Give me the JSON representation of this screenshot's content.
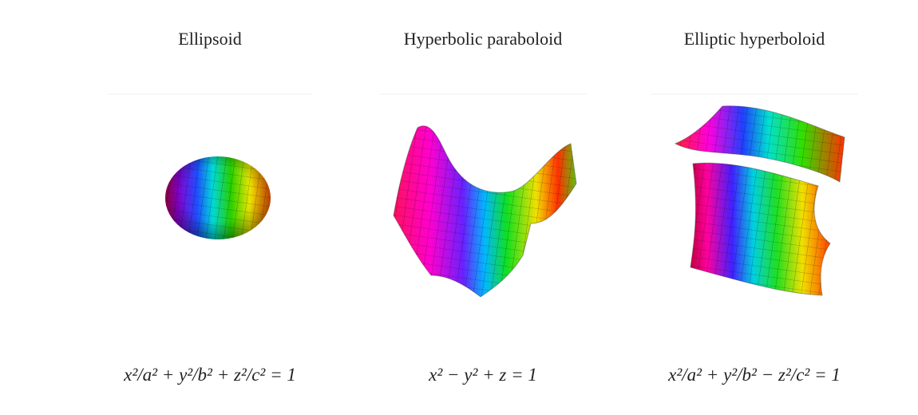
{
  "panels": [
    {
      "title": "Ellipsoid",
      "equation": "x²/a² + y²/b² + z²/c² = 1"
    },
    {
      "title": "Hyperbolic paraboloid",
      "equation": "x² − y² + z = 1"
    },
    {
      "title": "Elliptic hyperboloid",
      "equation": "x²/a² + y²/b² − z²/c² = 1"
    }
  ]
}
